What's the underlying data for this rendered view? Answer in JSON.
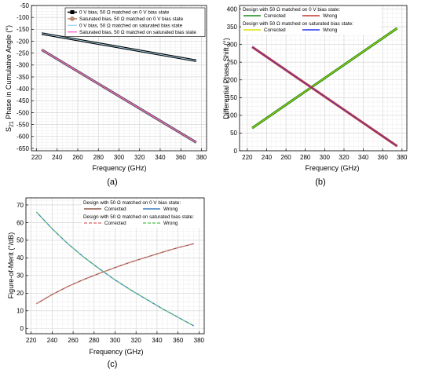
{
  "chart_data": [
    {
      "id": "a",
      "type": "line",
      "panel_label": "(a)",
      "xlabel": "Frequency (GHz)",
      "ylabel": "S21 Phase in Cumulative Angle (°)",
      "ylabel_parts": [
        "S",
        "21",
        " Phase in Cumulative Angle (°)"
      ],
      "xlim": [
        215,
        385
      ],
      "ylim": [
        -660,
        -50
      ],
      "xticks": [
        220,
        240,
        260,
        280,
        300,
        320,
        340,
        360,
        380
      ],
      "yticks": [
        -650,
        -600,
        -550,
        -500,
        -450,
        -400,
        -350,
        -300,
        -250,
        -200,
        -150,
        -100,
        -50
      ],
      "grid": true,
      "legend": {
        "position": "top-right",
        "entries": [
          {
            "label": "0 V bias, 50 Ω matched on 0 V bias state",
            "color": "#000000",
            "marker": "square"
          },
          {
            "label": "Saturated bias, 50 Ω matched on 0 V bias state",
            "color": "#c98f6a",
            "marker": "circle"
          },
          {
            "label": "0 V bias, 50 Ω matched on saturated bias state",
            "color": "#a8d8f0",
            "marker": "none"
          },
          {
            "label": "Saturated bias, 50 Ω matched on saturated bias state",
            "color": "#ff66cc",
            "marker": "none"
          }
        ]
      },
      "series": [
        {
          "name": "0 V bias, 50 Ω matched on 0 V bias state",
          "color": "#000000",
          "width": 3.2,
          "x": [
            225,
            375
          ],
          "y": [
            -168,
            -282
          ]
        },
        {
          "name": "0 V bias, 50 Ω matched on saturated bias state",
          "color": "#a8d8f0",
          "width": 1.0,
          "x": [
            225,
            375
          ],
          "y": [
            -168,
            -282
          ]
        },
        {
          "name": "Saturated bias, 50 Ω matched on 0 V bias state",
          "color": "#555555",
          "width": 3.2,
          "x": [
            225,
            375
          ],
          "y": [
            -236,
            -625
          ]
        },
        {
          "name": "Saturated bias, 50 Ω matched on saturated bias state",
          "color": "#ff66cc",
          "width": 1.2,
          "x": [
            225,
            375
          ],
          "y": [
            -236,
            -625
          ]
        }
      ]
    },
    {
      "id": "b",
      "type": "line",
      "panel_label": "(b)",
      "xlabel": "Frequency (GHz)",
      "ylabel": "Differential Phase Shift (°)",
      "xlim": [
        212,
        385
      ],
      "ylim": [
        0,
        410
      ],
      "xticks": [
        220,
        240,
        260,
        280,
        300,
        320,
        340,
        360,
        380
      ],
      "yticks": [
        0,
        50,
        100,
        150,
        200,
        250,
        300,
        350,
        400
      ],
      "grid": true,
      "legend": {
        "position": "top-left",
        "groups": [
          {
            "title": "Design with 50 Ω matched on 0 V bias state:",
            "entries": [
              {
                "label": "Corrected",
                "color": "#1a8a1a"
              },
              {
                "label": "Wrong",
                "color": "#c0392b"
              }
            ]
          },
          {
            "title": "Design with 50 Ω matched on saturated bias state:",
            "entries": [
              {
                "label": "Corrected",
                "color": "#e0e000"
              },
              {
                "label": "Wrong",
                "color": "#2233ee"
              }
            ]
          }
        ]
      },
      "series": [
        {
          "name": "Corrected",
          "color": "#1a8a1a",
          "width": 3.0,
          "x": [
            225,
            375
          ],
          "y": [
            64,
            346
          ]
        },
        {
          "name": "Corrected",
          "color": "#e0e000",
          "width": 0.8,
          "x": [
            225,
            375
          ],
          "y": [
            64,
            346
          ]
        },
        {
          "name": "Wrong",
          "color": "#c0392b",
          "width": 3.0,
          "x": [
            225,
            375
          ],
          "y": [
            293,
            13
          ]
        },
        {
          "name": "Wrong",
          "color": "#6633cc",
          "width": 1.0,
          "x": [
            225,
            375
          ],
          "y": [
            293,
            13
          ]
        }
      ]
    },
    {
      "id": "c",
      "type": "line",
      "panel_label": "(c)",
      "xlabel": "Frequency (GHz)",
      "ylabel": "Figure-of-Merit (°/dB)",
      "xlim": [
        215,
        385
      ],
      "ylim": [
        -3,
        74
      ],
      "xticks": [
        220,
        240,
        260,
        280,
        300,
        320,
        340,
        360,
        380
      ],
      "yticks": [
        0,
        10,
        20,
        30,
        40,
        50,
        60,
        70
      ],
      "grid": true,
      "legend": {
        "position": "top-right",
        "groups": [
          {
            "title": "Design with 50 Ω matched on 0 V bias state:",
            "entries": [
              {
                "label": "Corrected",
                "color": "#8b5a4a",
                "dash": false
              },
              {
                "label": "Wrong",
                "color": "#3d7fbf",
                "dash": false
              }
            ]
          },
          {
            "title": "Design with 50 Ω matched on saturated bias state:",
            "entries": [
              {
                "label": "Corrected",
                "color": "#e07b7b",
                "dash": true
              },
              {
                "label": "Wrong",
                "color": "#66cc66",
                "dash": true
              }
            ]
          }
        ]
      },
      "series": [
        {
          "name": "Corrected",
          "color": "#8b5a4a",
          "width": 1.3,
          "x": [
            225,
            240,
            255,
            270,
            285,
            300,
            315,
            330,
            345,
            360,
            375
          ],
          "y": [
            14,
            19.2,
            23.8,
            27.7,
            31.2,
            34.5,
            37.6,
            40.4,
            43.2,
            45.8,
            48
          ]
        },
        {
          "name": "Corrected",
          "color": "#e07b7b",
          "width": 1.0,
          "dash": true,
          "x": [
            225,
            240,
            255,
            270,
            285,
            300,
            315,
            330,
            345,
            360,
            375
          ],
          "y": [
            14,
            19.2,
            23.8,
            27.7,
            31.2,
            34.5,
            37.6,
            40.4,
            43.2,
            45.8,
            48
          ]
        },
        {
          "name": "Wrong",
          "color": "#3d7fbf",
          "width": 1.3,
          "x": [
            225,
            240,
            255,
            270,
            285,
            300,
            315,
            330,
            345,
            360,
            375
          ],
          "y": [
            66,
            56.5,
            48,
            40.5,
            33.8,
            27.5,
            21.8,
            16.5,
            11.2,
            6.3,
            1.5
          ]
        },
        {
          "name": "Wrong",
          "color": "#66cc66",
          "width": 1.0,
          "dash": true,
          "x": [
            225,
            240,
            255,
            270,
            285,
            300,
            315,
            330,
            345,
            360,
            375
          ],
          "y": [
            66,
            56.5,
            48,
            40.5,
            33.8,
            27.5,
            21.8,
            16.5,
            11.2,
            6.3,
            1.5
          ]
        }
      ]
    }
  ]
}
